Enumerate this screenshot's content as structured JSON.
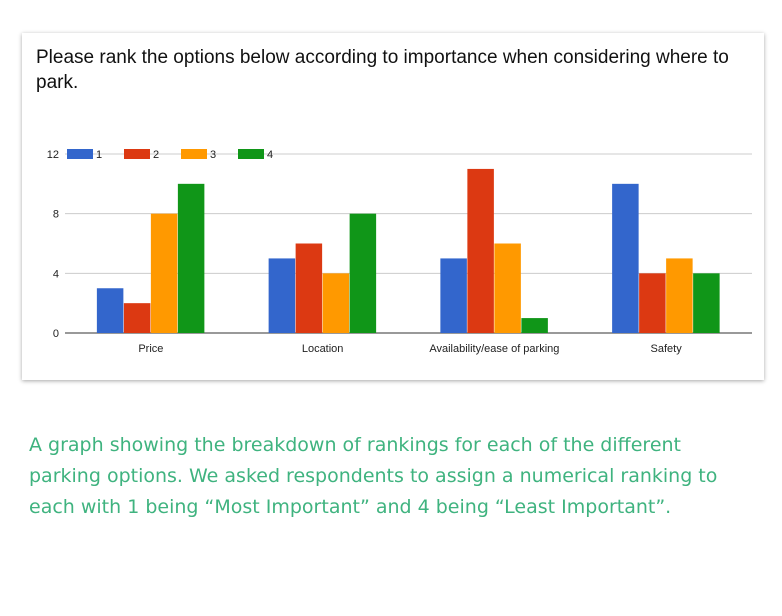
{
  "chart_data": {
    "type": "bar",
    "title": "Please rank the options below according to importance when considering where to park.",
    "xlabel": "",
    "ylabel": "",
    "categories": [
      "Price",
      "Location",
      "Availability/ease of parking",
      "Safety"
    ],
    "series": [
      {
        "name": "1",
        "color": "#3366cc",
        "values": [
          3,
          5,
          5,
          10
        ]
      },
      {
        "name": "2",
        "color": "#dc3912",
        "values": [
          2,
          6,
          11,
          4
        ]
      },
      {
        "name": "3",
        "color": "#ff9900",
        "values": [
          8,
          4,
          6,
          5
        ]
      },
      {
        "name": "4",
        "color": "#109618",
        "values": [
          10,
          8,
          1,
          4
        ]
      }
    ],
    "ylim": [
      0,
      12
    ],
    "yticks": [
      "0",
      "4",
      "8",
      "12"
    ],
    "grid": true,
    "legend_position": "top-left"
  },
  "caption": "A graph showing the breakdown of rankings for each of the different parking options. We asked respondents to assign a numerical ranking to each with 1 being “Most Important” and 4 being “Least Important”.",
  "colors": {
    "caption_text": "#3fb37f",
    "grid": "#cccccc",
    "axis": "#333333"
  }
}
